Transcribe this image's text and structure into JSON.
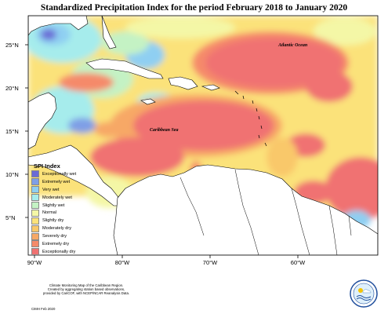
{
  "title": "Standardized Precipitation Index for the period February 2018 to January 2020",
  "axes": {
    "lat_labels": [
      "25°N",
      "20°N",
      "15°N",
      "10°N",
      "5°N"
    ],
    "lon_labels": [
      "90°W",
      "80°W",
      "70°W",
      "60°W"
    ]
  },
  "map_labels": {
    "atlantic": "Atlantic Ocean",
    "caribbean": "Caribbean Sea"
  },
  "legend": {
    "title": "SPI Index",
    "items": [
      {
        "label": "Exceptionally wet",
        "color": "#6b6bd6"
      },
      {
        "label": "Extremely wet",
        "color": "#7f9fe6"
      },
      {
        "label": "Very wet",
        "color": "#8fcff2"
      },
      {
        "label": "Moderately wet",
        "color": "#a6ecec"
      },
      {
        "label": "Slightly wet",
        "color": "#c4f2c4"
      },
      {
        "label": "Normal",
        "color": "#f4f7a6"
      },
      {
        "label": "Slightly dry",
        "color": "#fbe27a"
      },
      {
        "label": "Moderately dry",
        "color": "#f9c86a"
      },
      {
        "label": "Severely dry",
        "color": "#f7a866"
      },
      {
        "label": "Extremely dry",
        "color": "#f58a6a"
      },
      {
        "label": "Exceptionally dry",
        "color": "#f07272"
      }
    ]
  },
  "footnote": {
    "line1": "Climate Monitoring Map of the Caribbean Region.",
    "line2": "Created by aggregating station based observations,",
    "line3": "provided by CariCOF, with NCEP/NCAR Reanalysis Data."
  },
  "credit": "CIMH Feb 2020",
  "logo_text": "CIMH"
}
